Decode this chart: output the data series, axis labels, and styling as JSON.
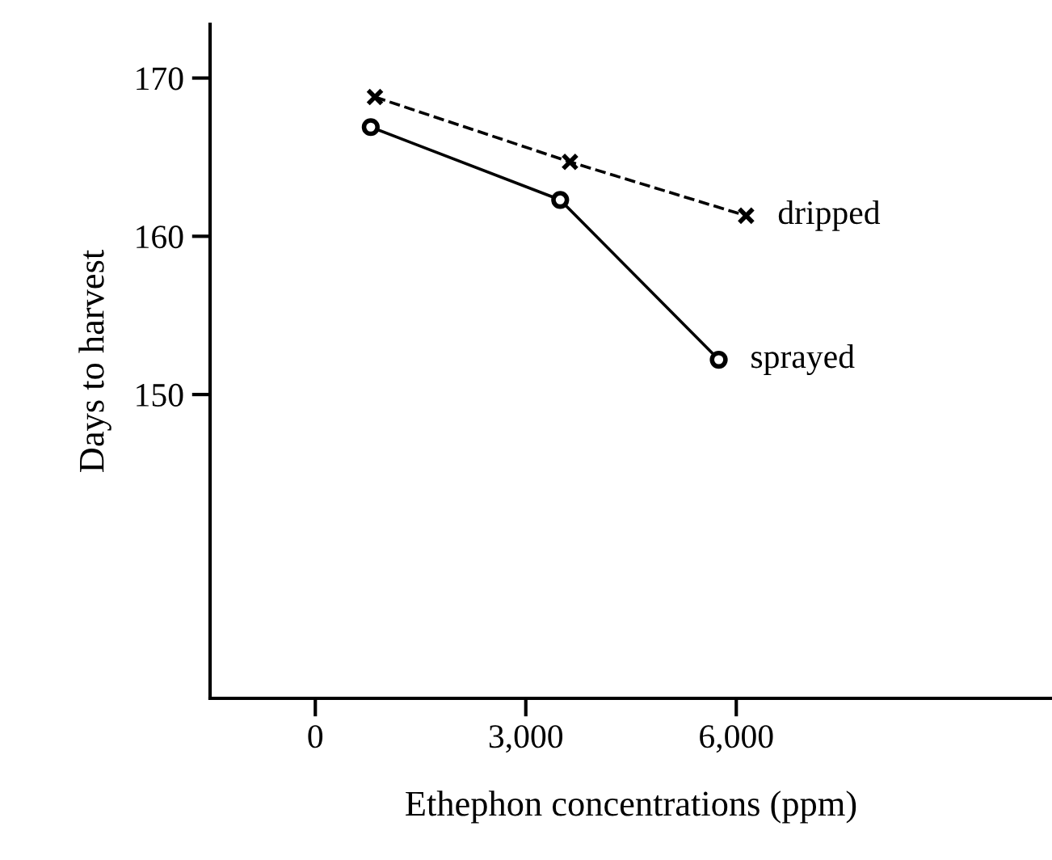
{
  "chart_data": {
    "type": "line",
    "xlabel": "Ethephon concentrations (ppm)",
    "ylabel": "Days to harvest",
    "series": [
      {
        "name": "dripped",
        "color": "#000000",
        "x": [
          850,
          3630,
          6140
        ],
        "values": [
          168.8,
          164.7,
          161.3
        ],
        "marker": "cross",
        "line_style": "dashed"
      },
      {
        "name": "sprayed",
        "color": "#000000",
        "x": [
          790,
          3490,
          5750
        ],
        "values": [
          166.9,
          162.3,
          152.2
        ],
        "marker": "circle",
        "line_style": "solid"
      }
    ],
    "xlim": [
      -1500,
      10500
    ],
    "xticks": [
      0,
      {
        "value": 3000,
        "label": "3,000"
      },
      {
        "value": 6000,
        "label": "6,000"
      }
    ],
    "ylim": [
      130.8,
      173.4
    ],
    "yticks": [
      150,
      160,
      170
    ],
    "grid": false,
    "legend": false
  }
}
